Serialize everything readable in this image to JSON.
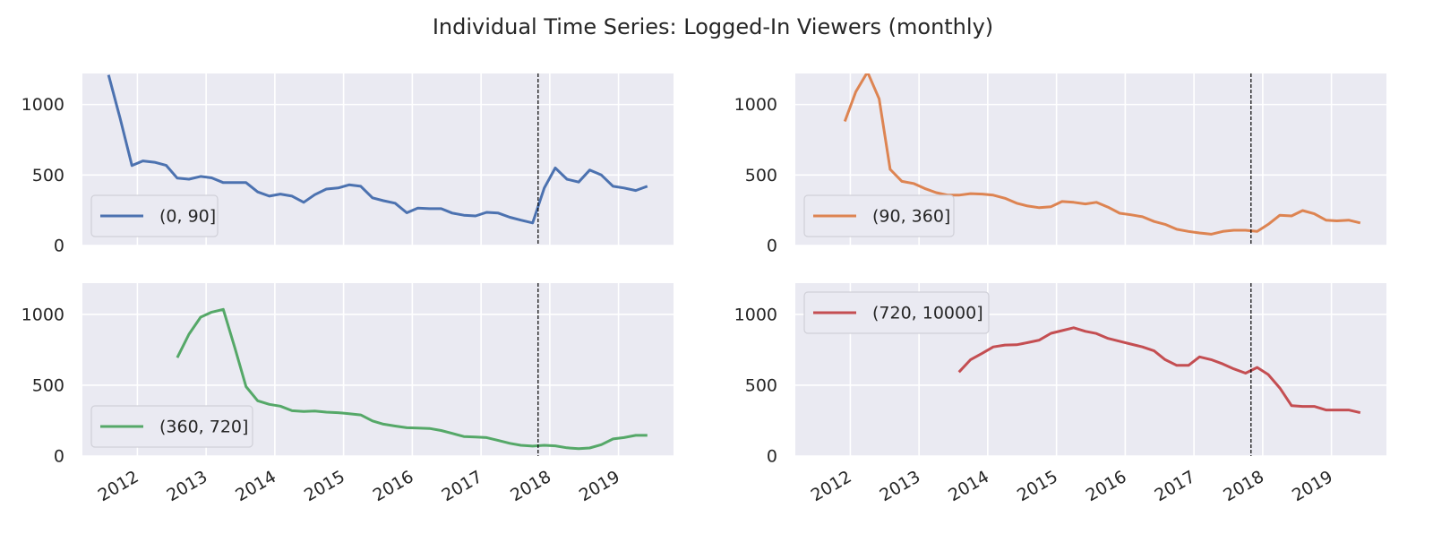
{
  "title": "Individual Time Series: Logged-In Viewers (monthly)",
  "chart_data": [
    {
      "type": "line",
      "legend": "lower left",
      "grid": true,
      "show_xtick_labels": false,
      "xlim": [
        2011.2,
        2019.8
      ],
      "ylim": [
        0,
        1220
      ],
      "yticks": [
        0,
        500,
        1000
      ],
      "xticks": [
        2012,
        2013,
        2014,
        2015,
        2016,
        2017,
        2018,
        2019
      ],
      "vline": 2017.83,
      "x": [
        2011.58,
        2011.75,
        2011.92,
        2012.08,
        2012.25,
        2012.42,
        2012.58,
        2012.75,
        2012.92,
        2013.08,
        2013.25,
        2013.42,
        2013.58,
        2013.75,
        2013.92,
        2014.08,
        2014.25,
        2014.42,
        2014.58,
        2014.75,
        2014.92,
        2015.08,
        2015.25,
        2015.42,
        2015.58,
        2015.75,
        2015.92,
        2016.08,
        2016.25,
        2016.42,
        2016.58,
        2016.75,
        2016.92,
        2017.08,
        2017.25,
        2017.42,
        2017.58,
        2017.75,
        2017.92,
        2018.08,
        2018.25,
        2018.42,
        2018.58,
        2018.75,
        2018.92,
        2019.08,
        2019.25,
        2019.42
      ],
      "series": [
        {
          "name": "(0, 90]",
          "color": "#4c72b0",
          "values": [
            1210,
            900,
            567,
            600,
            590,
            568,
            478,
            470,
            490,
            480,
            446,
            446,
            446,
            380,
            350,
            365,
            350,
            306,
            360,
            400,
            408,
            430,
            420,
            338,
            318,
            300,
            232,
            265,
            261,
            261,
            230,
            215,
            210,
            235,
            230,
            200,
            180,
            160,
            408,
            550,
            470,
            450,
            535,
            500,
            420,
            408,
            390,
            420
          ]
        }
      ]
    },
    {
      "type": "line",
      "legend": "lower left",
      "grid": true,
      "show_xtick_labels": false,
      "xlim": [
        2011.2,
        2019.8
      ],
      "ylim": [
        0,
        1220
      ],
      "yticks": [
        0,
        500,
        1000
      ],
      "xticks": [
        2012,
        2013,
        2014,
        2015,
        2016,
        2017,
        2018,
        2019
      ],
      "vline": 2017.83,
      "x": [
        2011.58,
        2011.75,
        2011.92,
        2012.08,
        2012.25,
        2012.42,
        2012.58,
        2012.75,
        2012.92,
        2013.08,
        2013.25,
        2013.42,
        2013.58,
        2013.75,
        2013.92,
        2014.08,
        2014.25,
        2014.42,
        2014.58,
        2014.75,
        2014.92,
        2015.08,
        2015.25,
        2015.42,
        2015.58,
        2015.75,
        2015.92,
        2016.08,
        2016.25,
        2016.42,
        2016.58,
        2016.75,
        2016.92,
        2017.08,
        2017.25,
        2017.42,
        2017.58,
        2017.75,
        2017.92,
        2018.08,
        2018.25,
        2018.42,
        2018.58,
        2018.75,
        2018.92,
        2019.08,
        2019.25,
        2019.42
      ],
      "series": [
        {
          "name": "(90, 360]",
          "color": "#dd8452",
          "values": [
            null,
            null,
            880,
            1090,
            1230,
            1040,
            540,
            455,
            440,
            405,
            375,
            357,
            357,
            368,
            365,
            357,
            335,
            300,
            280,
            268,
            275,
            312,
            306,
            295,
            306,
            272,
            229,
            218,
            204,
            170,
            150,
            115,
            100,
            89,
            80,
            100,
            108,
            108,
            100,
            150,
            215,
            210,
            248,
            225,
            180,
            175,
            180,
            160
          ]
        }
      ]
    },
    {
      "type": "line",
      "legend": "lower left",
      "grid": true,
      "show_xtick_labels": true,
      "xlim": [
        2011.2,
        2019.8
      ],
      "ylim": [
        0,
        1220
      ],
      "yticks": [
        0,
        500,
        1000
      ],
      "xticks": [
        2012,
        2013,
        2014,
        2015,
        2016,
        2017,
        2018,
        2019
      ],
      "vline": 2017.83,
      "x": [
        2011.58,
        2011.75,
        2011.92,
        2012.08,
        2012.25,
        2012.42,
        2012.58,
        2012.75,
        2012.92,
        2013.08,
        2013.25,
        2013.42,
        2013.58,
        2013.75,
        2013.92,
        2014.08,
        2014.25,
        2014.42,
        2014.58,
        2014.75,
        2014.92,
        2015.08,
        2015.25,
        2015.42,
        2015.58,
        2015.75,
        2015.92,
        2016.08,
        2016.25,
        2016.42,
        2016.58,
        2016.75,
        2016.92,
        2017.08,
        2017.25,
        2017.42,
        2017.58,
        2017.75,
        2017.92,
        2018.08,
        2018.25,
        2018.42,
        2018.58,
        2018.75,
        2018.92,
        2019.08,
        2019.25,
        2019.42
      ],
      "series": [
        {
          "name": "(360, 720]",
          "color": "#55a868",
          "values": [
            null,
            null,
            null,
            null,
            null,
            null,
            694,
            860,
            980,
            1015,
            1035,
            760,
            490,
            390,
            365,
            352,
            320,
            315,
            318,
            310,
            306,
            299,
            290,
            248,
            225,
            212,
            200,
            197,
            195,
            180,
            160,
            138,
            134,
            130,
            110,
            90,
            76,
            70,
            76,
            72,
            58,
            52,
            57,
            80,
            121,
            130,
            146,
            146
          ]
        }
      ]
    },
    {
      "type": "line",
      "legend": "upper left",
      "grid": true,
      "show_xtick_labels": true,
      "xlim": [
        2011.2,
        2019.8
      ],
      "ylim": [
        0,
        1220
      ],
      "yticks": [
        0,
        500,
        1000
      ],
      "xticks": [
        2012,
        2013,
        2014,
        2015,
        2016,
        2017,
        2018,
        2019
      ],
      "vline": 2017.83,
      "x": [
        2011.58,
        2011.75,
        2011.92,
        2012.08,
        2012.25,
        2012.42,
        2012.58,
        2012.75,
        2012.92,
        2013.08,
        2013.25,
        2013.42,
        2013.58,
        2013.75,
        2013.92,
        2014.08,
        2014.25,
        2014.42,
        2014.58,
        2014.75,
        2014.92,
        2015.08,
        2015.25,
        2015.42,
        2015.58,
        2015.75,
        2015.92,
        2016.08,
        2016.25,
        2016.42,
        2016.58,
        2016.75,
        2016.92,
        2017.08,
        2017.25,
        2017.42,
        2017.58,
        2017.75,
        2017.92,
        2018.08,
        2018.25,
        2018.42,
        2018.58,
        2018.75,
        2018.92,
        2019.08,
        2019.25,
        2019.42
      ],
      "series": [
        {
          "name": "(720, 10000]",
          "color": "#c44e52",
          "values": [
            null,
            null,
            null,
            null,
            null,
            null,
            null,
            null,
            null,
            null,
            null,
            null,
            592,
            680,
            725,
            770,
            783,
            785,
            800,
            818,
            866,
            885,
            905,
            880,
            865,
            830,
            810,
            790,
            770,
            742,
            680,
            640,
            640,
            700,
            680,
            650,
            615,
            585,
            625,
            575,
            480,
            355,
            350,
            350,
            325,
            325,
            325,
            306
          ]
        }
      ]
    }
  ]
}
